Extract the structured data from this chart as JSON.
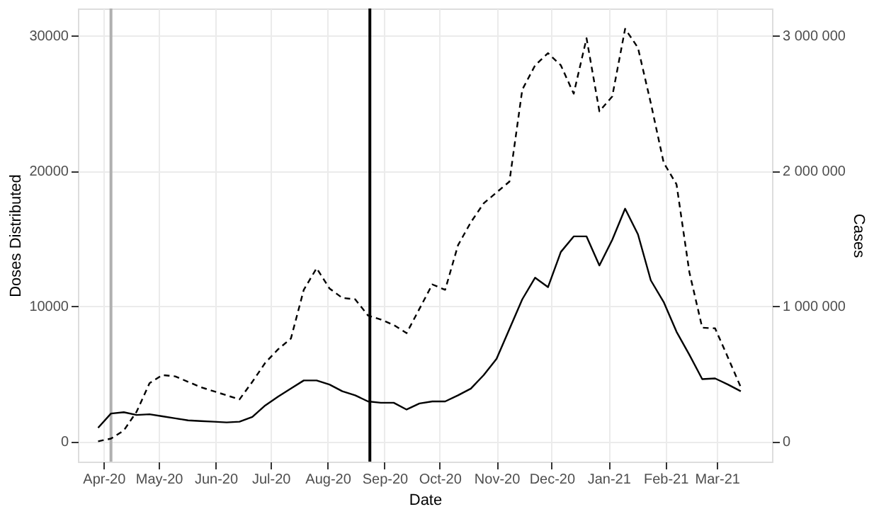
{
  "chart_data": {
    "type": "line",
    "xlabel": "Date",
    "ylabel": "Doses Distributed",
    "y2label": "Cases",
    "x": [
      "2020-03-29",
      "2020-04-05",
      "2020-04-12",
      "2020-04-19",
      "2020-04-26",
      "2020-05-03",
      "2020-05-10",
      "2020-05-17",
      "2020-05-24",
      "2020-05-31",
      "2020-06-07",
      "2020-06-14",
      "2020-06-21",
      "2020-06-28",
      "2020-07-05",
      "2020-07-12",
      "2020-07-19",
      "2020-07-26",
      "2020-08-02",
      "2020-08-09",
      "2020-08-16",
      "2020-08-23",
      "2020-08-30",
      "2020-09-06",
      "2020-09-13",
      "2020-09-20",
      "2020-09-27",
      "2020-10-04",
      "2020-10-11",
      "2020-10-18",
      "2020-10-25",
      "2020-11-01",
      "2020-11-08",
      "2020-11-15",
      "2020-11-22",
      "2020-11-29",
      "2020-12-06",
      "2020-12-13",
      "2020-12-20",
      "2020-12-27",
      "2021-01-03",
      "2021-01-10",
      "2021-01-17",
      "2021-01-24",
      "2021-01-31",
      "2021-02-07",
      "2021-02-14",
      "2021-02-21",
      "2021-02-28",
      "2021-03-07",
      "2021-03-14"
    ],
    "series": [
      {
        "color": "#000000",
        "line_style": "solid",
        "values": [
          1000,
          2050,
          2150,
          1950,
          2000,
          1850,
          1700,
          1550,
          1500,
          1450,
          1400,
          1450,
          1800,
          2650,
          3300,
          3900,
          4500,
          4500,
          4200,
          3700,
          3400,
          2950,
          2850,
          2850,
          2350,
          2800,
          2950,
          2950,
          3400,
          3900,
          4900,
          6100,
          8300,
          10500,
          12100,
          11400,
          14000,
          15150,
          15150,
          13000,
          14900,
          17200,
          15300,
          11900,
          10300,
          8100,
          6400,
          4600,
          4650,
          4200,
          3700
        ]
      },
      {
        "color": "#000000",
        "line_style": "dashed",
        "axis": "y2",
        "values": [
          0,
          20000,
          80000,
          220000,
          430000,
          490000,
          480000,
          440000,
          400000,
          370000,
          340000,
          310000,
          440000,
          580000,
          680000,
          760000,
          1120000,
          1280000,
          1130000,
          1060000,
          1050000,
          930000,
          900000,
          860000,
          800000,
          980000,
          1160000,
          1120000,
          1450000,
          1620000,
          1760000,
          1840000,
          1920000,
          2600000,
          2780000,
          2870000,
          2780000,
          2570000,
          2980000,
          2440000,
          2550000,
          3050000,
          2910000,
          2500000,
          2060000,
          1900000,
          1250000,
          840000,
          835000,
          620000,
          400000
        ]
      }
    ],
    "xlim": [
      "2020-03-18",
      "2021-03-31"
    ],
    "xticks": [
      {
        "value": "2020-04-01",
        "label": "Apr-20"
      },
      {
        "value": "2020-05-01",
        "label": "May-20"
      },
      {
        "value": "2020-06-01",
        "label": "Jun-20"
      },
      {
        "value": "2020-07-01",
        "label": "Jul-20"
      },
      {
        "value": "2020-08-01",
        "label": "Aug-20"
      },
      {
        "value": "2020-09-01",
        "label": "Sep-20"
      },
      {
        "value": "2020-10-01",
        "label": "Oct-20"
      },
      {
        "value": "2020-11-01",
        "label": "Nov-20"
      },
      {
        "value": "2020-12-01",
        "label": "Dec-20"
      },
      {
        "value": "2021-01-01",
        "label": "Jan-21"
      },
      {
        "value": "2021-02-01",
        "label": "Feb-21"
      },
      {
        "value": "2021-03-01",
        "label": "Mar-21"
      }
    ],
    "ylim": [
      -1500,
      32000
    ],
    "yticks": [
      0,
      10000,
      20000,
      30000
    ],
    "y2lim": [
      -150000,
      3200000
    ],
    "y2ticks": [
      0,
      {
        "value": 1000000,
        "label": "1 000 000"
      },
      {
        "value": 2000000,
        "label": "2 000 000"
      },
      {
        "value": 3000000,
        "label": "3 000 000"
      }
    ],
    "ref_lines": [
      {
        "axis": "x",
        "value": "2020-04-05",
        "color": "#b0b0b0"
      },
      {
        "axis": "x",
        "value": "2020-08-24",
        "color": "#000000"
      }
    ],
    "grid": true
  }
}
